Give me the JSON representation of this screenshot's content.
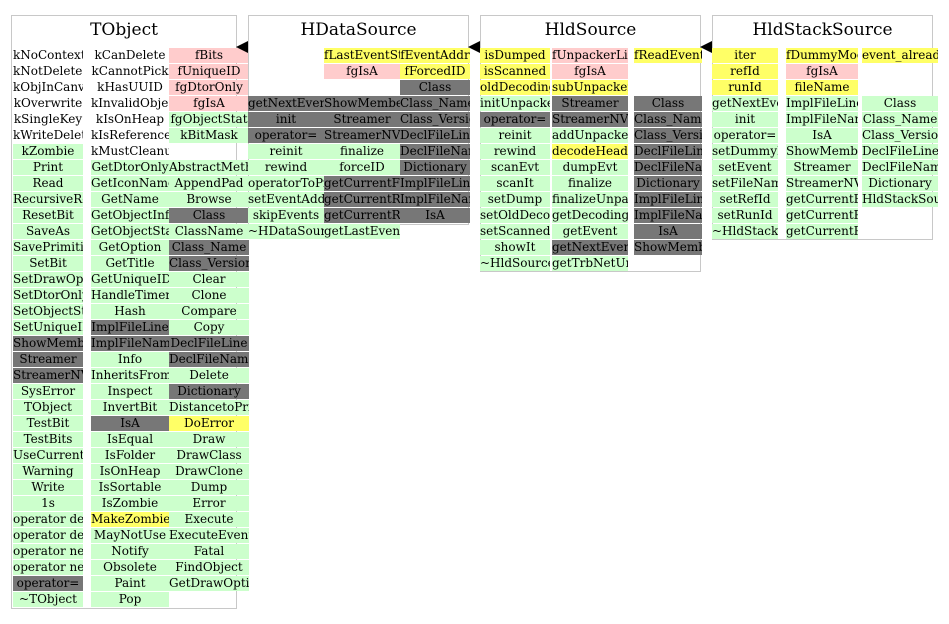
{
  "classes": [
    {
      "title": "TObject",
      "box": {
        "l": 11,
        "t": 15,
        "w": 226,
        "h": 594
      },
      "columns": [
        {
          "l": 2,
          "w": 70,
          "t": 33,
          "cells": [
            [
              "kNoContextMenu",
              "n"
            ],
            [
              "kNotDeleted",
              "n"
            ],
            [
              "kObjInCanvas",
              "n"
            ],
            [
              "kOverwrite",
              "n"
            ],
            [
              "kSingleKey",
              "n"
            ],
            [
              "kWriteDelete",
              "n"
            ],
            [
              "kZombie",
              "g"
            ],
            [
              "Print",
              "g"
            ],
            [
              "Read",
              "g"
            ],
            [
              "RecursiveRemove",
              "g"
            ],
            [
              "ResetBit",
              "g"
            ],
            [
              "SaveAs",
              "g"
            ],
            [
              "SavePrimitive",
              "g"
            ],
            [
              "SetBit",
              "g"
            ],
            [
              "SetDrawOption",
              "g"
            ],
            [
              "SetDtorOnly",
              "g"
            ],
            [
              "SetObjectStat",
              "g"
            ],
            [
              "SetUniqueID",
              "g"
            ],
            [
              "ShowMembers",
              "d"
            ],
            [
              "Streamer",
              "d"
            ],
            [
              "StreamerNVirtual",
              "d"
            ],
            [
              "SysError",
              "g"
            ],
            [
              "TObject",
              "g"
            ],
            [
              "TestBit",
              "g"
            ],
            [
              "TestBits",
              "g"
            ],
            [
              "UseCurrentStyle",
              "g"
            ],
            [
              "Warning",
              "g"
            ],
            [
              "Write",
              "g"
            ],
            [
              "1s",
              "g"
            ],
            [
              "operator delete",
              "g"
            ],
            [
              "operator delete[]",
              "g"
            ],
            [
              "operator new",
              "g"
            ],
            [
              "operator new[]",
              "g"
            ],
            [
              "operator=",
              "d"
            ],
            [
              "~TObject",
              "g"
            ]
          ]
        },
        {
          "l": 80,
          "w": 78,
          "t": 33,
          "cells": [
            [
              "kCanDelete",
              "n"
            ],
            [
              "kCannotPick",
              "n"
            ],
            [
              "kHasUUID",
              "n"
            ],
            [
              "kInvalidObject",
              "n"
            ],
            [
              "kIsOnHeap",
              "n"
            ],
            [
              "kIsReferenced",
              "n"
            ],
            [
              "kMustCleanup",
              "n"
            ],
            [
              "GetDtorOnly",
              "g"
            ],
            [
              "GetIconName",
              "g"
            ],
            [
              "GetName",
              "g"
            ],
            [
              "GetObjectInfo",
              "g"
            ],
            [
              "GetObjectStat",
              "g"
            ],
            [
              "GetOption",
              "g"
            ],
            [
              "GetTitle",
              "g"
            ],
            [
              "GetUniqueID",
              "g"
            ],
            [
              "HandleTimer",
              "g"
            ],
            [
              "Hash",
              "g"
            ],
            [
              "ImplFileLine",
              "d"
            ],
            [
              "ImplFileName",
              "d"
            ],
            [
              "Info",
              "g"
            ],
            [
              "InheritsFrom",
              "g"
            ],
            [
              "Inspect",
              "g"
            ],
            [
              "InvertBit",
              "g"
            ],
            [
              "IsA",
              "d"
            ],
            [
              "IsEqual",
              "g"
            ],
            [
              "IsFolder",
              "g"
            ],
            [
              "IsOnHeap",
              "g"
            ],
            [
              "IsSortable",
              "g"
            ],
            [
              "IsZombie",
              "g"
            ],
            [
              "MakeZombie",
              "y"
            ],
            [
              "MayNotUse",
              "g"
            ],
            [
              "Notify",
              "g"
            ],
            [
              "Obsolete",
              "g"
            ],
            [
              "Paint",
              "g"
            ],
            [
              "Pop",
              "g"
            ]
          ]
        },
        {
          "l": 158,
          "w": 80,
          "t": 33,
          "cells": [
            [
              "fBits",
              "p"
            ],
            [
              "fUniqueID",
              "p"
            ],
            [
              "fgDtorOnly",
              "p"
            ],
            [
              "fgIsA",
              "p"
            ],
            [
              "fgObjectStat",
              "g"
            ],
            [
              "kBitMask",
              "g"
            ],
            [
              "",
              "n"
            ],
            [
              "AbstractMethod",
              "g"
            ],
            [
              "AppendPad",
              "g"
            ],
            [
              "Browse",
              "g"
            ],
            [
              "Class",
              "d"
            ],
            [
              "ClassName",
              "g"
            ],
            [
              "Class_Name",
              "d"
            ],
            [
              "Class_Version",
              "d"
            ],
            [
              "Clear",
              "g"
            ],
            [
              "Clone",
              "g"
            ],
            [
              "Compare",
              "g"
            ],
            [
              "Copy",
              "g"
            ],
            [
              "DeclFileLine",
              "d"
            ],
            [
              "DeclFileName",
              "d"
            ],
            [
              "Delete",
              "g"
            ],
            [
              "Dictionary",
              "d"
            ],
            [
              "DistancetoPrimitive",
              "g"
            ],
            [
              "DoError",
              "y"
            ],
            [
              "Draw",
              "g"
            ],
            [
              "DrawClass",
              "g"
            ],
            [
              "DrawClone",
              "g"
            ],
            [
              "Dump",
              "g"
            ],
            [
              "Error",
              "g"
            ],
            [
              "Execute",
              "g"
            ],
            [
              "ExecuteEvent",
              "g"
            ],
            [
              "Fatal",
              "g"
            ],
            [
              "FindObject",
              "g"
            ],
            [
              "GetDrawOption",
              "g"
            ]
          ]
        }
      ]
    },
    {
      "title": "HDataSource",
      "box": {
        "l": 248,
        "t": 15,
        "w": 221,
        "h": 210
      },
      "columns": [
        {
          "l": 0,
          "w": 76,
          "t": 33,
          "cells": [
            [
              "",
              "n"
            ],
            [
              "",
              "n"
            ],
            [
              "",
              "n"
            ],
            [
              "getNextEvent",
              "d"
            ],
            [
              "init",
              "d"
            ],
            [
              "operator=",
              "d"
            ],
            [
              "reinit",
              "g"
            ],
            [
              "rewind",
              "g"
            ],
            [
              "operatorToPrevious",
              "g"
            ],
            [
              "setEventAddress",
              "g"
            ],
            [
              "skipEvents",
              "g"
            ],
            [
              "~HDataSource",
              "g"
            ]
          ]
        },
        {
          "l": 76,
          "w": 76,
          "t": 33,
          "cells": [
            [
              "fLastEventStatus",
              "y"
            ],
            [
              "fgIsA",
              "p"
            ],
            [
              "",
              "n"
            ],
            [
              "ShowMembers",
              "d"
            ],
            [
              "Streamer",
              "d"
            ],
            [
              "StreamerNVirtual",
              "d"
            ],
            [
              "finalize",
              "g"
            ],
            [
              "forceID",
              "g"
            ],
            [
              "getCurrentFileName",
              "d"
            ],
            [
              "getCurrentRefId",
              "d"
            ],
            [
              "getCurrentRunId",
              "d"
            ],
            [
              "getLastEventStatus",
              "g"
            ]
          ]
        },
        {
          "l": 152,
          "w": 70,
          "t": 33,
          "cells": [
            [
              "fEventAddr",
              "y"
            ],
            [
              "fForcedID",
              "y"
            ],
            [
              "Class",
              "d"
            ],
            [
              "Class_Name",
              "d"
            ],
            [
              "Class_Version",
              "d"
            ],
            [
              "DeclFileLine",
              "d"
            ],
            [
              "DeclFileName",
              "d"
            ],
            [
              "Dictionary",
              "d"
            ],
            [
              "ImplFileLine",
              "d"
            ],
            [
              "ImplFileName",
              "d"
            ],
            [
              "IsA",
              "d"
            ]
          ]
        }
      ]
    },
    {
      "title": "HldSource",
      "box": {
        "l": 480,
        "t": 15,
        "w": 221,
        "h": 257
      },
      "columns": [
        {
          "l": 0,
          "w": 70,
          "t": 33,
          "cells": [
            [
              "isDumped",
              "y"
            ],
            [
              "isScanned",
              "y"
            ],
            [
              "oldDecodingStyle",
              "y"
            ],
            [
              "initUnpacker",
              "g"
            ],
            [
              "operator=",
              "d"
            ],
            [
              "reinit",
              "g"
            ],
            [
              "rewind",
              "g"
            ],
            [
              "scanEvt",
              "g"
            ],
            [
              "scanIt",
              "g"
            ],
            [
              "setDump",
              "g"
            ],
            [
              "setOldDecodingStyle",
              "g"
            ],
            [
              "setScanned",
              "g"
            ],
            [
              "showIt",
              "g"
            ],
            [
              "~HldSource",
              "g"
            ]
          ]
        },
        {
          "l": 72,
          "w": 76,
          "t": 33,
          "cells": [
            [
              "fUnpackerList",
              "p"
            ],
            [
              "fgIsA",
              "p"
            ],
            [
              "subUnpacker",
              "y"
            ],
            [
              "Streamer",
              "d"
            ],
            [
              "StreamerNVirtual",
              "d"
            ],
            [
              "addUnpacker",
              "g"
            ],
            [
              "decodeHeader",
              "y"
            ],
            [
              "dumpEvt",
              "g"
            ],
            [
              "finalize",
              "g"
            ],
            [
              "finalizeUnpacker",
              "g"
            ],
            [
              "getDecodingStyle",
              "g"
            ],
            [
              "getEvent",
              "g"
            ],
            [
              "getNextEvent",
              "d"
            ],
            [
              "getTrbNetUnpacker",
              "g"
            ]
          ]
        },
        {
          "l": 154,
          "w": 68,
          "t": 33,
          "cells": [
            [
              "fReadEvent",
              "y"
            ],
            [
              "",
              "n"
            ],
            [
              "",
              "n"
            ],
            [
              "Class",
              "d"
            ],
            [
              "Class_Name",
              "d"
            ],
            [
              "Class_Version",
              "d"
            ],
            [
              "DeclFileLine",
              "d"
            ],
            [
              "DeclFileName",
              "d"
            ],
            [
              "Dictionary",
              "d"
            ],
            [
              "ImplFileLine",
              "d"
            ],
            [
              "ImplFileName",
              "d"
            ],
            [
              "IsA",
              "d"
            ],
            [
              "ShowMembers",
              "d"
            ]
          ]
        }
      ]
    },
    {
      "title": "HldStackSource",
      "box": {
        "l": 712,
        "t": 15,
        "w": 221,
        "h": 225
      },
      "columns": [
        {
          "l": 0,
          "w": 66,
          "t": 33,
          "cells": [
            [
              "iter",
              "y"
            ],
            [
              "refId",
              "y"
            ],
            [
              "runId",
              "y"
            ],
            [
              "getNextEvent",
              "g"
            ],
            [
              "init",
              "g"
            ],
            [
              "operator=",
              "g"
            ],
            [
              "setDummyMode",
              "g"
            ],
            [
              "setEvent",
              "g"
            ],
            [
              "setFileName",
              "g"
            ],
            [
              "setRefId",
              "g"
            ],
            [
              "setRunId",
              "g"
            ],
            [
              "~HldStackSource",
              "g"
            ]
          ]
        },
        {
          "l": 74,
          "w": 72,
          "t": 33,
          "cells": [
            [
              "fDummyMode",
              "y"
            ],
            [
              "fgIsA",
              "p"
            ],
            [
              "fileName",
              "y"
            ],
            [
              "ImplFileLine",
              "g"
            ],
            [
              "ImplFileName",
              "g"
            ],
            [
              "IsA",
              "g"
            ],
            [
              "ShowMembers",
              "g"
            ],
            [
              "Streamer",
              "g"
            ],
            [
              "StreamerNVirtual",
              "g"
            ],
            [
              "getCurrentFileName",
              "g"
            ],
            [
              "getCurrentRefId",
              "g"
            ],
            [
              "getCurrentRunId",
              "g"
            ]
          ]
        },
        {
          "l": 150,
          "w": 76,
          "t": 33,
          "cells": [
            [
              "event_already_read",
              "y"
            ],
            [
              "",
              "n"
            ],
            [
              "",
              "n"
            ],
            [
              "Class",
              "g"
            ],
            [
              "Class_Name",
              "g"
            ],
            [
              "Class_Version",
              "g"
            ],
            [
              "DeclFileLine",
              "g"
            ],
            [
              "DeclFileName",
              "g"
            ],
            [
              "Dictionary",
              "g"
            ],
            [
              "HldStackSource",
              "g"
            ]
          ]
        }
      ]
    }
  ],
  "arrows": [
    {
      "l": 236,
      "t": 41
    },
    {
      "l": 468,
      "t": 41
    },
    {
      "l": 700,
      "t": 41
    }
  ]
}
